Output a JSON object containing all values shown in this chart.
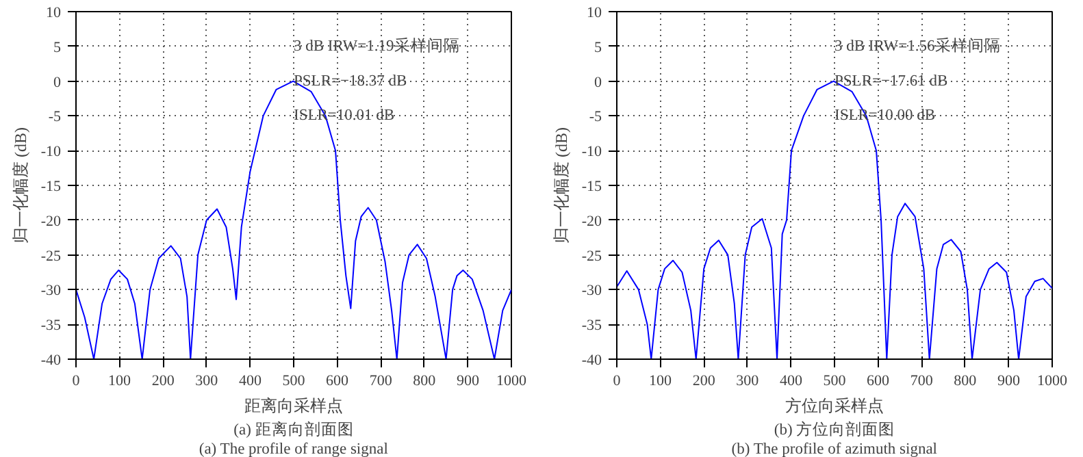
{
  "chart_data": [
    {
      "type": "line",
      "xlabel": "距离向采样点",
      "ylabel": "归一化幅度 (dB)",
      "xlim": [
        0,
        1000
      ],
      "ylim": [
        -40,
        10
      ],
      "xticks": [
        0,
        100,
        200,
        300,
        400,
        500,
        600,
        700,
        800,
        900,
        1000
      ],
      "yticks": [
        -40,
        -35,
        -30,
        -25,
        -20,
        -15,
        -10,
        -5,
        0,
        5,
        10
      ],
      "grid": true,
      "line_style": "solid",
      "series": [
        {
          "color": "#0000ff",
          "x": [
            0,
            20,
            41,
            60,
            80,
            98,
            118,
            135,
            152,
            170,
            190,
            218,
            240,
            255,
            263,
            280,
            300,
            324,
            345,
            360,
            368,
            380,
            400,
            430,
            460,
            499,
            540,
            573,
            596,
            607,
            620,
            631,
            642,
            655,
            671,
            690,
            710,
            725,
            737,
            750,
            765,
            784,
            805,
            825,
            850,
            865,
            875,
            889,
            910,
            935,
            961,
            980,
            1000
          ],
          "values": [
            -30,
            -34,
            -40,
            -32,
            -28.5,
            -27.2,
            -28.5,
            -32,
            -40,
            -30,
            -25.5,
            -23.7,
            -25.5,
            -31,
            -40,
            -25,
            -20,
            -18.4,
            -21,
            -27,
            -31.4,
            -21,
            -13,
            -5,
            -1.2,
            0,
            -1.5,
            -5,
            -10,
            -20,
            -28,
            -32.7,
            -23,
            -19.5,
            -18.2,
            -20,
            -26,
            -33,
            -40,
            -29,
            -25,
            -23.5,
            -25.5,
            -31,
            -40,
            -30,
            -28,
            -27.2,
            -28.5,
            -33,
            -40,
            -33,
            -30
          ]
        }
      ],
      "annotations": [
        "3 dB IRW=1.19采样间隔",
        "PSLR=−18.37 dB",
        "ISLR=10.01 dB",
        "(a) 距离向剖面图",
        "(a) The profile of range signal"
      ]
    },
    {
      "type": "line",
      "xlabel": "方位向采样点",
      "ylabel": "归一化幅度 (dB)",
      "xlim": [
        0,
        1000
      ],
      "ylim": [
        -40,
        10
      ],
      "xticks": [
        0,
        100,
        200,
        300,
        400,
        500,
        600,
        700,
        800,
        900,
        1000
      ],
      "yticks": [
        -40,
        -35,
        -30,
        -25,
        -20,
        -15,
        -10,
        -5,
        0,
        5,
        10
      ],
      "grid": true,
      "line_style": "solid",
      "series": [
        {
          "color": "#0000ff",
          "x": [
            0,
            23,
            50,
            70,
            79,
            95,
            110,
            129,
            150,
            170,
            182,
            200,
            215,
            234,
            255,
            270,
            279,
            295,
            310,
            334,
            355,
            368,
            380,
            390,
            401,
            429,
            460,
            498,
            540,
            573,
            596,
            607,
            620,
            632,
            645,
            662,
            685,
            705,
            718,
            735,
            750,
            768,
            790,
            805,
            816,
            835,
            855,
            873,
            895,
            912,
            923,
            940,
            960,
            979,
            1000
          ],
          "values": [
            -29.6,
            -27.3,
            -30,
            -35,
            -40,
            -30,
            -27,
            -25.8,
            -27.5,
            -33,
            -40,
            -27,
            -24,
            -22.9,
            -25,
            -32,
            -40,
            -25,
            -21,
            -19.8,
            -24,
            -40,
            -22,
            -20,
            -10,
            -5,
            -1.2,
            0,
            -1.5,
            -5,
            -10,
            -20,
            -40,
            -25,
            -19.5,
            -17.6,
            -19.5,
            -27,
            -40,
            -27,
            -23.5,
            -22.8,
            -24.5,
            -30,
            -40,
            -30,
            -27,
            -26.1,
            -27.5,
            -33,
            -40,
            -31,
            -28.8,
            -28.4,
            -29.8
          ]
        }
      ],
      "annotations": [
        "3 dB IRW=1.56采样间隔",
        "PSLR=−17.61 dB",
        "ISLR=10.00 dB",
        "(b) 方位向剖面图",
        "(b) The profile of azimuth signal"
      ]
    }
  ]
}
